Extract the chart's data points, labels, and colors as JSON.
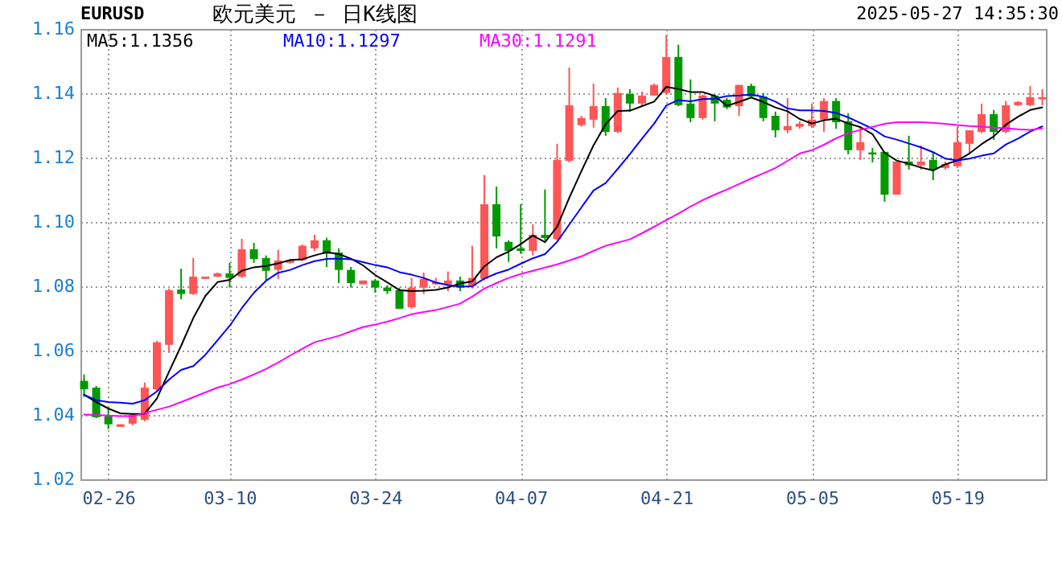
{
  "chart_data": {
    "type": "candlestick",
    "title": "欧元美元 － 日K线图",
    "subtitle": "EURUSD",
    "annotations": [
      "2025-05-27 14:35:30"
    ],
    "categories": [
      null,
      null,
      "02-26",
      null,
      null,
      null,
      null,
      null,
      null,
      null,
      null,
      null,
      "03-10",
      null,
      null,
      null,
      null,
      null,
      null,
      null,
      null,
      null,
      null,
      null,
      "03-24",
      null,
      null,
      null,
      null,
      null,
      null,
      null,
      null,
      null,
      null,
      null,
      "04-07",
      null,
      null,
      null,
      null,
      null,
      null,
      null,
      null,
      null,
      null,
      null,
      "04-21",
      null,
      null,
      null,
      null,
      null,
      null,
      null,
      null,
      null,
      null,
      null,
      "05-05",
      null,
      null,
      null,
      null,
      null,
      null,
      null,
      null,
      null,
      null,
      null,
      "05-19",
      null,
      null,
      null,
      null,
      null,
      null,
      null
    ],
    "ohlc": [
      [
        1.0506,
        1.0526,
        1.0456,
        1.048
      ],
      [
        1.0485,
        1.049,
        1.039,
        1.0393
      ],
      [
        1.0396,
        1.0418,
        1.0356,
        1.0371
      ],
      [
        1.0363,
        1.0371,
        1.0363,
        1.0371
      ],
      [
        1.0373,
        1.0406,
        1.0368,
        1.0401
      ],
      [
        1.0385,
        1.0501,
        1.038,
        1.0485
      ],
      [
        1.048,
        1.063,
        1.0476,
        1.0626
      ],
      [
        1.0618,
        1.0793,
        1.0593,
        1.0788
      ],
      [
        1.079,
        1.0855,
        1.076,
        1.0776
      ],
      [
        1.0776,
        1.0888,
        1.0773,
        1.083
      ],
      [
        1.0823,
        1.083,
        1.0823,
        1.083
      ],
      [
        1.083,
        1.0843,
        1.0828,
        1.084
      ],
      [
        1.084,
        1.0873,
        1.0796,
        1.0826
      ],
      [
        1.083,
        1.0948,
        1.0826,
        1.0915
      ],
      [
        1.0915,
        1.0935,
        1.0873,
        1.0885
      ],
      [
        1.0888,
        1.0896,
        1.0818,
        1.0848
      ],
      [
        1.0851,
        1.0913,
        1.0823,
        1.088
      ],
      [
        1.0873,
        1.0883,
        1.0871,
        1.0881
      ],
      [
        1.0881,
        1.093,
        1.0878,
        1.0926
      ],
      [
        1.0918,
        1.096,
        1.091,
        1.0943
      ],
      [
        1.0943,
        1.0951,
        1.086,
        1.0901
      ],
      [
        1.0905,
        1.0918,
        1.081,
        1.0851
      ],
      [
        1.0851,
        1.086,
        1.0796,
        1.081
      ],
      [
        1.0806,
        1.0818,
        1.0806,
        1.0818
      ],
      [
        1.0818,
        1.0823,
        1.078,
        1.0796
      ],
      [
        1.0796,
        1.0803,
        1.0776,
        1.0785
      ],
      [
        1.0788,
        1.0796,
        1.073,
        1.073
      ],
      [
        1.0735,
        1.0826,
        1.073,
        1.0796
      ],
      [
        1.0796,
        1.0843,
        1.0776,
        1.0823
      ],
      [
        1.0806,
        1.0826,
        1.0806,
        1.0813
      ],
      [
        1.0806,
        1.0846,
        1.0785,
        1.0818
      ],
      [
        1.0818,
        1.083,
        1.0785,
        1.0796
      ],
      [
        1.0801,
        1.0926,
        1.0793,
        1.0826
      ],
      [
        1.0823,
        1.1146,
        1.0818,
        1.1055
      ],
      [
        1.1055,
        1.111,
        1.0918,
        1.0955
      ],
      [
        1.0938,
        1.0943,
        1.0876,
        1.091
      ],
      [
        1.0918,
        1.1055,
        1.0901,
        1.091
      ],
      [
        1.091,
        1.0993,
        1.0896,
        1.096
      ],
      [
        1.096,
        1.1101,
        1.0943,
        1.095
      ],
      [
        1.0946,
        1.1243,
        1.0943,
        1.1193
      ],
      [
        1.119,
        1.148,
        1.1185,
        1.1363
      ],
      [
        1.1301,
        1.133,
        1.1296,
        1.1323
      ],
      [
        1.1318,
        1.143,
        1.1293,
        1.136
      ],
      [
        1.136,
        1.1385,
        1.1268,
        1.128
      ],
      [
        1.128,
        1.1418,
        1.1276,
        1.1401
      ],
      [
        1.1398,
        1.1413,
        1.1343,
        1.1368
      ],
      [
        1.1368,
        1.1405,
        1.136,
        1.1393
      ],
      [
        1.1393,
        1.143,
        1.1393,
        1.1426
      ],
      [
        1.1401,
        1.158,
        1.1396,
        1.1513
      ],
      [
        1.1513,
        1.1551,
        1.136,
        1.1363
      ],
      [
        1.1368,
        1.1443,
        1.131,
        1.1323
      ],
      [
        1.1323,
        1.1396,
        1.1318,
        1.1393
      ],
      [
        1.1393,
        1.1396,
        1.1313,
        1.1368
      ],
      [
        1.138,
        1.1385,
        1.1351,
        1.1356
      ],
      [
        1.136,
        1.1426,
        1.133,
        1.1426
      ],
      [
        1.1423,
        1.143,
        1.1385,
        1.139
      ],
      [
        1.139,
        1.1401,
        1.1313,
        1.1323
      ],
      [
        1.133,
        1.1343,
        1.1263,
        1.1285
      ],
      [
        1.1285,
        1.1385,
        1.1276,
        1.1298
      ],
      [
        1.1296,
        1.1313,
        1.129,
        1.1305
      ],
      [
        1.1298,
        1.1368,
        1.1293,
        1.1318
      ],
      [
        1.1318,
        1.1385,
        1.128,
        1.1376
      ],
      [
        1.1376,
        1.1385,
        1.129,
        1.131
      ],
      [
        1.1313,
        1.1338,
        1.121,
        1.1223
      ],
      [
        1.1223,
        1.1296,
        1.1193,
        1.1248
      ],
      [
        1.1216,
        1.123,
        1.1185,
        1.121
      ],
      [
        1.1218,
        1.1218,
        1.1063,
        1.1085
      ],
      [
        1.1085,
        1.1188,
        1.1085,
        1.1188
      ],
      [
        1.1188,
        1.1268,
        1.1163,
        1.1176
      ],
      [
        1.1176,
        1.1238,
        1.1163,
        1.1188
      ],
      [
        1.1193,
        1.1218,
        1.113,
        1.1163
      ],
      [
        1.1168,
        1.1188,
        1.1163,
        1.118
      ],
      [
        1.1173,
        1.1296,
        1.1168,
        1.1248
      ],
      [
        1.1243,
        1.1285,
        1.1213,
        1.1285
      ],
      [
        1.128,
        1.1368,
        1.1276,
        1.1335
      ],
      [
        1.1335,
        1.1348,
        1.1255,
        1.128
      ],
      [
        1.128,
        1.1376,
        1.1276,
        1.1363
      ],
      [
        1.1363,
        1.1376,
        1.136,
        1.1373
      ],
      [
        1.1363,
        1.1423,
        1.136,
        1.1388
      ],
      [
        1.1381,
        1.1413,
        1.1363,
        1.1388
      ]
    ],
    "colors": [
      "#009900",
      "#009900",
      "#009900",
      "#ff5555",
      "#ff5555",
      "#ff5555",
      "#ff5555",
      "#ff5555",
      "#009900",
      "#ff5555",
      "#ff5555",
      "#ff5555",
      "#009900",
      "#ff5555",
      "#009900",
      "#009900",
      "#ff5555",
      "#ff5555",
      "#ff5555",
      "#ff5555",
      "#009900",
      "#009900",
      "#009900",
      "#ff5555",
      "#009900",
      "#009900",
      "#009900",
      "#ff5555",
      "#ff5555",
      "#ff5555",
      "#ff5555",
      "#009900",
      "#ff5555",
      "#ff5555",
      "#009900",
      "#009900",
      "#009900",
      "#ff5555",
      "#009900",
      "#ff5555",
      "#ff5555",
      "#ff5555",
      "#ff5555",
      "#009900",
      "#ff5555",
      "#009900",
      "#ff5555",
      "#ff5555",
      "#ff5555",
      "#009900",
      "#009900",
      "#ff5555",
      "#009900",
      "#009900",
      "#ff5555",
      "#009900",
      "#009900",
      "#009900",
      "#ff5555",
      "#ff5555",
      "#ff5555",
      "#ff5555",
      "#009900",
      "#009900",
      "#ff5555",
      "#009900",
      "#009900",
      "#ff5555",
      "#009900",
      "#ff5555",
      "#009900",
      "#ff5555",
      "#ff5555",
      "#ff5555",
      "#ff5555",
      "#009900",
      "#ff5555",
      "#ff5555",
      "#ff5555",
      "#ff5555"
    ],
    "series": [
      {
        "type": "line",
        "name": "MA5:1.1356",
        "color": "#000000",
        "values": [
          1.0463,
          1.044,
          1.042,
          1.0405,
          1.0403,
          1.0404,
          1.0451,
          1.0534,
          1.0615,
          1.0701,
          1.077,
          1.0813,
          1.082,
          1.0848,
          1.0859,
          1.0863,
          1.0871,
          1.0882,
          1.0884,
          1.0896,
          1.0906,
          1.09,
          1.0886,
          1.0865,
          1.0835,
          1.0812,
          1.0788,
          1.0785,
          1.0786,
          1.0789,
          1.0796,
          1.0809,
          1.0815,
          1.0862,
          1.089,
          1.0908,
          1.0931,
          1.0958,
          1.0937,
          1.0985,
          1.1075,
          1.1158,
          1.1238,
          1.1304,
          1.1345,
          1.1346,
          1.136,
          1.1374,
          1.142,
          1.1413,
          1.1404,
          1.1404,
          1.1392,
          1.1361,
          1.1373,
          1.1387,
          1.1373,
          1.1356,
          1.1344,
          1.132,
          1.1306,
          1.1316,
          1.1321,
          1.1306,
          1.1295,
          1.1273,
          1.1215,
          1.1191,
          1.1181,
          1.1169,
          1.116,
          1.1179,
          1.1191,
          1.1213,
          1.1242,
          1.1266,
          1.1302,
          1.1327,
          1.1348,
          1.1356
        ]
      },
      {
        "type": "line",
        "name": "MA10:1.1297",
        "color": "#0000ff",
        "values": [
          1.0463,
          1.0446,
          1.044,
          1.0438,
          1.0435,
          1.0446,
          1.0473,
          1.051,
          1.054,
          1.0552,
          1.0587,
          1.0632,
          1.0677,
          1.0732,
          1.078,
          1.0817,
          1.0842,
          1.0851,
          1.0866,
          1.0878,
          1.0885,
          1.0886,
          1.0884,
          1.0875,
          1.0866,
          1.0859,
          1.0844,
          1.0836,
          1.0826,
          1.0812,
          1.0804,
          1.0799,
          1.08,
          1.0824,
          1.084,
          1.0852,
          1.087,
          1.0887,
          1.09,
          1.0938,
          1.0992,
          1.1045,
          1.1098,
          1.1121,
          1.1165,
          1.1211,
          1.1259,
          1.1306,
          1.1362,
          1.1379,
          1.1375,
          1.1382,
          1.1383,
          1.1391,
          1.1393,
          1.1396,
          1.1389,
          1.1374,
          1.1353,
          1.1347,
          1.1347,
          1.1345,
          1.1339,
          1.1325,
          1.1308,
          1.129,
          1.1266,
          1.1256,
          1.1244,
          1.1232,
          1.1217,
          1.1197,
          1.1191,
          1.1197,
          1.1206,
          1.1213,
          1.1241,
          1.1259,
          1.1281,
          1.1297
        ]
      },
      {
        "type": "line",
        "name": "MA30:1.1291",
        "color": "#ff00ff",
        "values": [
          1.0401,
          1.04,
          1.0398,
          1.0396,
          1.0396,
          1.0406,
          1.0416,
          1.0426,
          1.044,
          1.0455,
          1.047,
          1.0485,
          1.0496,
          1.051,
          1.0526,
          1.0543,
          1.0563,
          1.0585,
          1.0606,
          1.0626,
          1.0636,
          1.0646,
          1.066,
          1.0673,
          1.0681,
          1.069,
          1.0701,
          1.0713,
          1.072,
          1.0726,
          1.0736,
          1.0746,
          1.0768,
          1.0793,
          1.081,
          1.0826,
          1.0838,
          1.0848,
          1.0858,
          1.0868,
          1.088,
          1.0893,
          1.091,
          1.0926,
          1.0936,
          1.0946,
          1.0965,
          1.0985,
          1.1006,
          1.1026,
          1.1048,
          1.1068,
          1.1085,
          1.1101,
          1.1118,
          1.1135,
          1.1151,
          1.1168,
          1.119,
          1.1213,
          1.1223,
          1.124,
          1.126,
          1.1276,
          1.1286,
          1.1296,
          1.1305,
          1.131,
          1.131,
          1.131,
          1.1308,
          1.1305,
          1.1301,
          1.1298,
          1.1296,
          1.1293,
          1.1291,
          1.1288,
          1.1286,
          1.1291
        ]
      }
    ],
    "ylim": [
      1.02,
      1.16
    ],
    "yticks": [
      1.02,
      1.04,
      1.06,
      1.08,
      {
        "value": 1.1,
        "label": "1.10"
      },
      1.12,
      1.14,
      1.16
    ],
    "grid": true,
    "legend": "top left"
  }
}
